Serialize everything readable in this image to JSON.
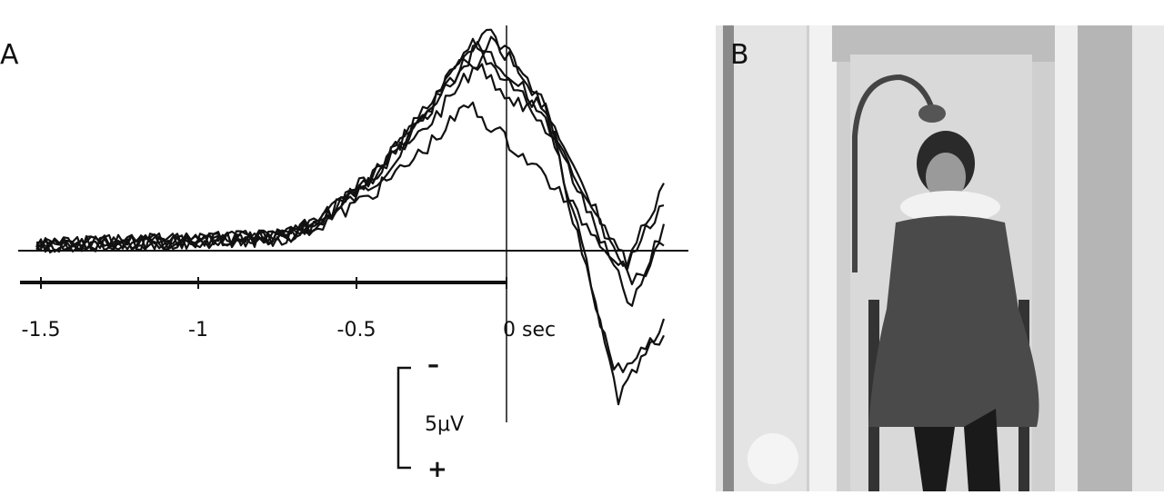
{
  "panel_a": {
    "label": "A",
    "x_ticks": [
      "-1.5",
      "-1",
      "-0.5",
      "0 sec"
    ],
    "scale_bar": {
      "top": "–",
      "value": "5μV",
      "bottom": "+"
    }
  },
  "panel_b": {
    "label": "B"
  }
}
